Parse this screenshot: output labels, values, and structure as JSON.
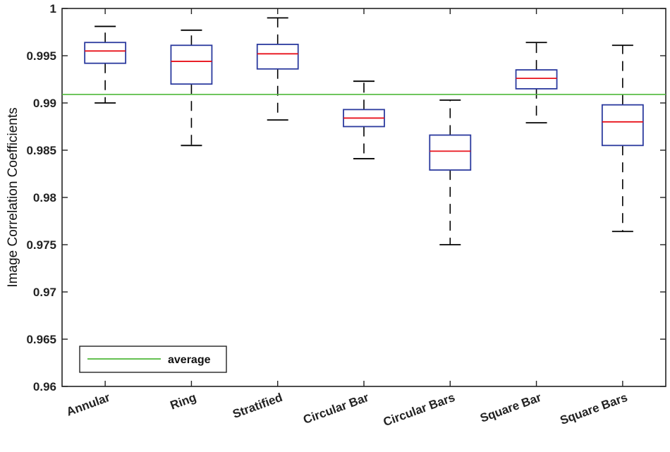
{
  "chart_data": {
    "type": "box",
    "title": "",
    "xlabel": "",
    "ylabel": "Image Correlation Coefficients",
    "ylim": [
      0.96,
      1.0
    ],
    "yticks": [
      "0.96",
      "0.965",
      "0.97",
      "0.975",
      "0.98",
      "0.985",
      "0.99",
      "0.995",
      "1"
    ],
    "categories": [
      "Annular",
      "Ring",
      "Stratified",
      "Circular Bar",
      "Circular Bars",
      "Square Bar",
      "Square Bars"
    ],
    "boxes": [
      {
        "name": "Annular",
        "min": 0.99,
        "q1": 0.9942,
        "median": 0.9955,
        "q3": 0.9964,
        "max": 0.9981
      },
      {
        "name": "Ring",
        "min": 0.9855,
        "q1": 0.992,
        "median": 0.9944,
        "q3": 0.9961,
        "max": 0.9977
      },
      {
        "name": "Stratified",
        "min": 0.9882,
        "q1": 0.9936,
        "median": 0.9952,
        "q3": 0.9962,
        "max": 0.999
      },
      {
        "name": "Circular Bar",
        "min": 0.9841,
        "q1": 0.9875,
        "median": 0.9884,
        "q3": 0.9893,
        "max": 0.9923
      },
      {
        "name": "Circular Bars",
        "min": 0.975,
        "q1": 0.9829,
        "median": 0.9849,
        "q3": 0.9866,
        "max": 0.9903
      },
      {
        "name": "Square Bar",
        "min": 0.9879,
        "q1": 0.9915,
        "median": 0.9926,
        "q3": 0.9935,
        "max": 0.9964
      },
      {
        "name": "Square Bars",
        "min": 0.9764,
        "q1": 0.9855,
        "median": 0.988,
        "q3": 0.9898,
        "max": 0.9961
      }
    ],
    "average": 0.9909,
    "legend": {
      "entries": [
        "average"
      ],
      "placement": "bottom-left"
    },
    "colors": {
      "box": "#2b3a9e",
      "median": "#e8121b",
      "whisker": "#000000",
      "average": "#4fb83a",
      "axis": "#222222"
    }
  }
}
